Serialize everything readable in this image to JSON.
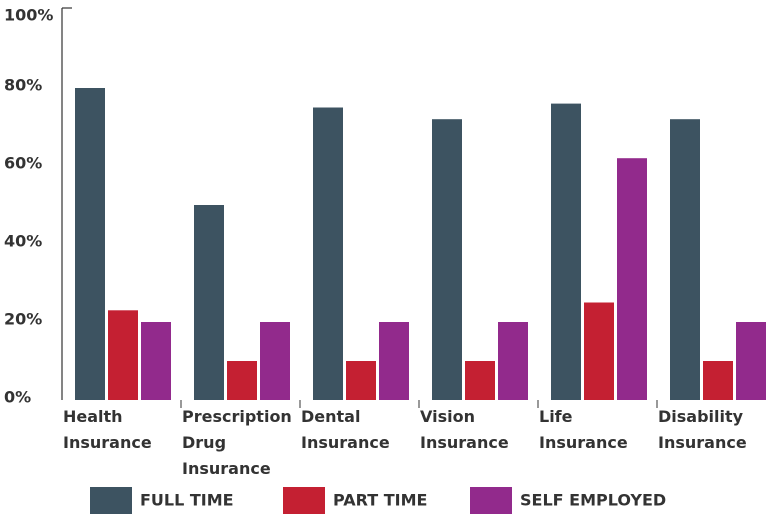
{
  "chart_data": {
    "type": "bar",
    "categories": [
      "Health Insurance",
      "Prescription Drug Insurance",
      "Dental Insurance",
      "Vision Insurance",
      "Life Insurance",
      "Disability Insurance"
    ],
    "series": [
      {
        "name": "FULL TIME",
        "color": "#3d5361",
        "values": [
          80,
          50,
          75,
          72,
          76,
          72
        ]
      },
      {
        "name": "PART TIME",
        "color": "#c42032",
        "values": [
          23,
          10,
          10,
          10,
          25,
          10
        ]
      },
      {
        "name": "SELF EMPLOYED",
        "color": "#922a8c",
        "values": [
          20,
          20,
          20,
          20,
          62,
          20
        ]
      }
    ],
    "ylim": [
      0,
      100
    ],
    "yticks": [
      {
        "value": 0,
        "label": "0%"
      },
      {
        "value": 20,
        "label": "20%"
      },
      {
        "value": 40,
        "label": "40%"
      },
      {
        "value": 60,
        "label": "60%"
      },
      {
        "value": 80,
        "label": "80%"
      },
      {
        "value": 100,
        "label": "100%"
      }
    ],
    "grid": false
  }
}
